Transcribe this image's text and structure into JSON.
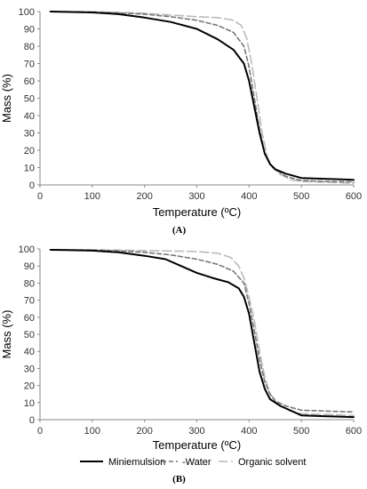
{
  "chart_data": [
    {
      "type": "line",
      "panel_label": "(A)",
      "xlabel": "Temperature (ºC)",
      "ylabel": "Mass (%)",
      "xlim": [
        0,
        600
      ],
      "ylim": [
        0,
        100
      ],
      "xticks": [
        0,
        100,
        200,
        300,
        400,
        500,
        600
      ],
      "yticks": [
        0,
        10,
        20,
        30,
        40,
        50,
        60,
        70,
        80,
        90,
        100
      ],
      "grid": false,
      "series": [
        {
          "name": "Miniemulsion",
          "color": "#000000",
          "style": "solid",
          "x": [
            20,
            50,
            100,
            150,
            200,
            250,
            300,
            340,
            370,
            390,
            400,
            410,
            420,
            430,
            440,
            450,
            470,
            500,
            550,
            600
          ],
          "y": [
            100,
            99.8,
            99.5,
            98.5,
            96.5,
            94,
            90,
            84,
            78,
            70,
            60,
            45,
            30,
            18,
            12,
            9,
            6.5,
            4,
            3.5,
            3
          ]
        },
        {
          "name": "Water",
          "color": "#777777",
          "style": "dashed",
          "x": [
            20,
            50,
            100,
            150,
            200,
            250,
            300,
            340,
            370,
            390,
            400,
            410,
            420,
            430,
            440,
            450,
            470,
            500,
            550,
            600
          ],
          "y": [
            100,
            99.9,
            99.7,
            99.2,
            98.5,
            97,
            95,
            92,
            88,
            80,
            68,
            50,
            32,
            18,
            12,
            9,
            5,
            2.5,
            2,
            1.8
          ]
        },
        {
          "name": "Organic solvent",
          "color": "#bbbbbb",
          "style": "longdash",
          "x": [
            20,
            50,
            100,
            150,
            200,
            250,
            300,
            340,
            370,
            385,
            395,
            405,
            415,
            425,
            435,
            445,
            460,
            480,
            500,
            550,
            600
          ],
          "y": [
            100,
            100,
            99.9,
            99.5,
            99,
            98,
            97,
            96.5,
            95,
            92,
            85,
            70,
            50,
            30,
            16,
            10,
            6,
            3,
            2,
            1.5,
            1
          ]
        }
      ]
    },
    {
      "type": "line",
      "panel_label": "(B)",
      "xlabel": "Temperature (ºC)",
      "ylabel": "Mass (%)",
      "xlim": [
        0,
        600
      ],
      "ylim": [
        0,
        100
      ],
      "xticks": [
        0,
        100,
        200,
        300,
        400,
        500,
        600
      ],
      "yticks": [
        0,
        10,
        20,
        30,
        40,
        50,
        60,
        70,
        80,
        90,
        100
      ],
      "grid": false,
      "legend_position": "bottom",
      "series": [
        {
          "name": "Miniemulsion",
          "color": "#000000",
          "style": "solid",
          "x": [
            20,
            50,
            100,
            150,
            200,
            240,
            270,
            300,
            330,
            360,
            380,
            390,
            400,
            410,
            420,
            430,
            440,
            460,
            500,
            550,
            600
          ],
          "y": [
            99.5,
            99.3,
            99,
            98,
            96,
            94,
            90,
            86,
            83,
            80.5,
            77,
            72,
            62,
            45,
            28,
            18,
            12,
            8,
            2.5,
            2,
            1.5
          ]
        },
        {
          "name": "-Water",
          "color": "#777777",
          "style": "dashed",
          "x": [
            20,
            50,
            100,
            150,
            200,
            250,
            300,
            340,
            370,
            390,
            400,
            410,
            420,
            430,
            440,
            450,
            470,
            500,
            550,
            600
          ],
          "y": [
            99.5,
            99.5,
            99.3,
            98.8,
            98,
            96.5,
            94,
            91,
            87,
            80,
            68,
            52,
            35,
            22,
            15,
            11,
            8,
            5.5,
            5,
            4.5
          ]
        },
        {
          "name": "Organic solvent",
          "color": "#bbbbbb",
          "style": "longdash",
          "x": [
            20,
            50,
            100,
            150,
            200,
            250,
            300,
            340,
            365,
            380,
            390,
            400,
            410,
            420,
            430,
            440,
            460,
            480,
            500,
            550,
            600
          ],
          "y": [
            99.5,
            99.5,
            99.5,
            99.3,
            99,
            98.8,
            98.5,
            97.5,
            95,
            90,
            83,
            72,
            58,
            40,
            25,
            15,
            8,
            5,
            3.5,
            3,
            2.5
          ]
        }
      ]
    }
  ]
}
